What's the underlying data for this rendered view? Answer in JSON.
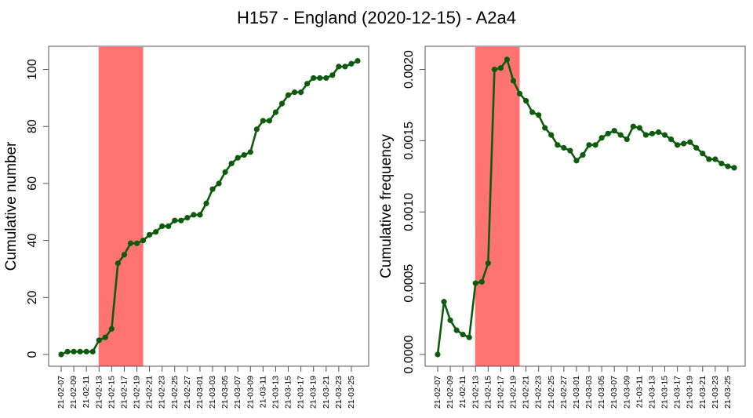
{
  "title": "H157 - England (2020-12-15) - A2a4",
  "colors": {
    "series": "#0d5c0d",
    "highlight": "#ff7070",
    "axis": "#555555"
  },
  "chart_data": [
    {
      "type": "line",
      "ylabel": "Cumulative number",
      "xlabel": "",
      "ylim": [
        0,
        104
      ],
      "yticks": [
        0,
        20,
        40,
        60,
        80,
        100
      ],
      "ytick_labels": [
        "0",
        "20",
        "40",
        "60",
        "80",
        "100"
      ],
      "highlight_range": [
        "21-02-13",
        "21-02-20"
      ],
      "x": [
        "21-02-07",
        "21-02-08",
        "21-02-09",
        "21-02-10",
        "21-02-11",
        "21-02-12",
        "21-02-13",
        "21-02-14",
        "21-02-15",
        "21-02-16",
        "21-02-17",
        "21-02-18",
        "21-02-19",
        "21-02-20",
        "21-02-21",
        "21-02-22",
        "21-02-23",
        "21-02-24",
        "21-02-25",
        "21-02-26",
        "21-02-27",
        "21-02-28",
        "21-03-01",
        "21-03-02",
        "21-03-03",
        "21-03-04",
        "21-03-05",
        "21-03-06",
        "21-03-07",
        "21-03-08",
        "21-03-09",
        "21-03-10",
        "21-03-11",
        "21-03-12",
        "21-03-13",
        "21-03-14",
        "21-03-15",
        "21-03-16",
        "21-03-17",
        "21-03-18",
        "21-03-19",
        "21-03-20",
        "21-03-21",
        "21-03-22",
        "21-03-23",
        "21-03-24",
        "21-03-25",
        "21-03-26"
      ],
      "xtick_labels": [
        "21-02-07",
        "21-02-09",
        "21-02-11",
        "21-02-13",
        "21-02-15",
        "21-02-17",
        "21-02-19",
        "21-02-21",
        "21-02-23",
        "21-02-25",
        "21-02-27",
        "21-03-01",
        "21-03-03",
        "21-03-05",
        "21-03-07",
        "21-03-09",
        "21-03-11",
        "21-03-13",
        "21-03-15",
        "21-03-17",
        "21-03-19",
        "21-03-21",
        "21-03-23",
        "21-03-25"
      ],
      "values": [
        0,
        1,
        1,
        1,
        1,
        1,
        5,
        6,
        9,
        32,
        35,
        39,
        39,
        40,
        42,
        43,
        45,
        45,
        47,
        47,
        48,
        49,
        49,
        53,
        58,
        60,
        64,
        67,
        69,
        70,
        71,
        79,
        82,
        82,
        85,
        88,
        91,
        92,
        92,
        95,
        97,
        97,
        97,
        98,
        101,
        101,
        102,
        103
      ]
    },
    {
      "type": "line",
      "ylabel": "Cumulative frequency",
      "xlabel": "",
      "ylim": [
        0,
        0.00208
      ],
      "yticks": [
        0,
        0.0005,
        0.001,
        0.0015,
        0.002
      ],
      "ytick_labels": [
        "0.0000",
        "0.0005",
        "0.0010",
        "0.0015",
        "0.0020"
      ],
      "highlight_range": [
        "21-02-13",
        "21-02-20"
      ],
      "x": [
        "21-02-07",
        "21-02-08",
        "21-02-09",
        "21-02-10",
        "21-02-11",
        "21-02-12",
        "21-02-13",
        "21-02-14",
        "21-02-15",
        "21-02-16",
        "21-02-17",
        "21-02-18",
        "21-02-19",
        "21-02-20",
        "21-02-21",
        "21-02-22",
        "21-02-23",
        "21-02-24",
        "21-02-25",
        "21-02-26",
        "21-02-27",
        "21-02-28",
        "21-03-01",
        "21-03-02",
        "21-03-03",
        "21-03-04",
        "21-03-05",
        "21-03-06",
        "21-03-07",
        "21-03-08",
        "21-03-09",
        "21-03-10",
        "21-03-11",
        "21-03-12",
        "21-03-13",
        "21-03-14",
        "21-03-15",
        "21-03-16",
        "21-03-17",
        "21-03-18",
        "21-03-19",
        "21-03-20",
        "21-03-21",
        "21-03-22",
        "21-03-23",
        "21-03-24",
        "21-03-25",
        "21-03-26"
      ],
      "xtick_labels": [
        "21-02-07",
        "21-02-09",
        "21-02-11",
        "21-02-13",
        "21-02-15",
        "21-02-17",
        "21-02-19",
        "21-02-21",
        "21-02-23",
        "21-02-25",
        "21-02-27",
        "21-03-01",
        "21-03-03",
        "21-03-05",
        "21-03-07",
        "21-03-09",
        "21-03-11",
        "21-03-13",
        "21-03-15",
        "21-03-17",
        "21-03-19",
        "21-03-21",
        "21-03-23",
        "21-03-25"
      ],
      "values": [
        0,
        0.00037,
        0.00024,
        0.00017,
        0.00014,
        0.00012,
        0.0005,
        0.00051,
        0.00064,
        0.002,
        0.00201,
        0.00207,
        0.00192,
        0.00183,
        0.00178,
        0.0017,
        0.00168,
        0.00159,
        0.00154,
        0.00147,
        0.00145,
        0.00143,
        0.00136,
        0.0014,
        0.00147,
        0.00147,
        0.00152,
        0.00155,
        0.00157,
        0.00154,
        0.00151,
        0.0016,
        0.00159,
        0.00154,
        0.00155,
        0.00156,
        0.00154,
        0.00151,
        0.00147,
        0.00148,
        0.00149,
        0.00145,
        0.00141,
        0.00137,
        0.00137,
        0.00134,
        0.00132,
        0.00131
      ]
    }
  ]
}
